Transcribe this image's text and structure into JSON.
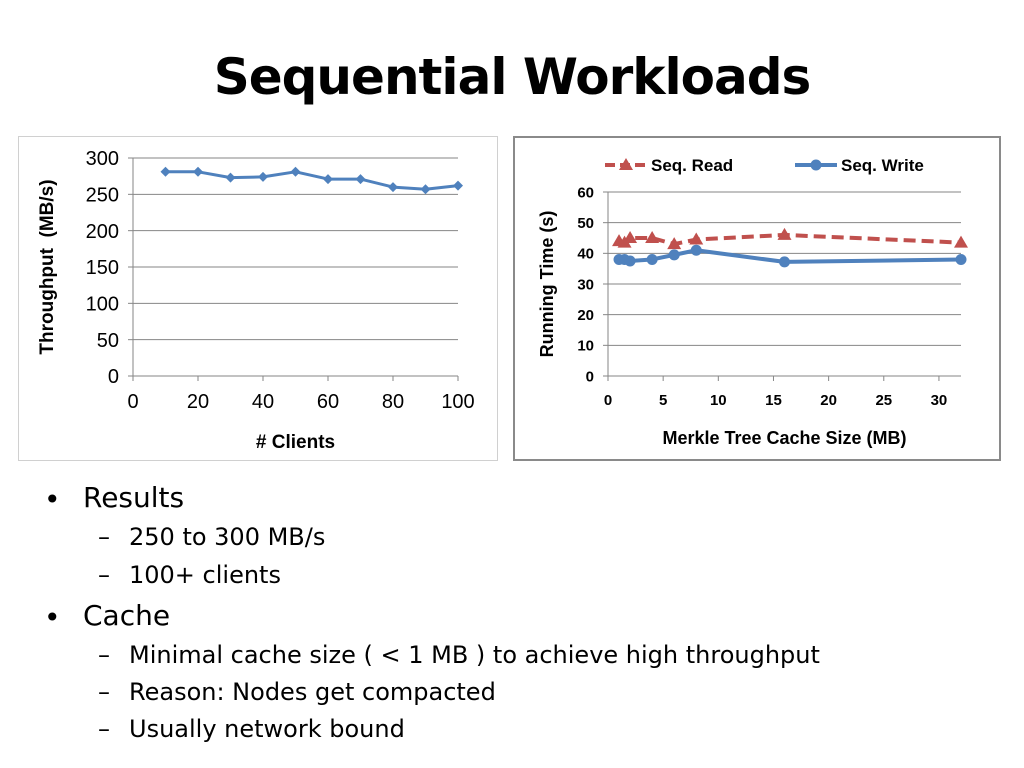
{
  "slide": {
    "title": "Sequential Workloads",
    "bullets": [
      {
        "text": "Results",
        "sub": [
          "250 to 300 MB/s",
          "100+ clients"
        ]
      },
      {
        "text": "Cache",
        "sub": [
          "Minimal cache size ( < 1 MB ) to achieve high throughput",
          "Reason: Nodes get compacted",
          "Usually network bound"
        ]
      }
    ],
    "bullet_symbol": "•",
    "sub_bullet_symbol": "–"
  },
  "chart_data": [
    {
      "type": "line",
      "title": "",
      "xlabel": "# Clients",
      "ylabel": "Throughput  (MB/s)",
      "xlim": [
        0,
        100
      ],
      "ylim": [
        0,
        300
      ],
      "xticks": [
        0,
        20,
        40,
        60,
        80,
        100
      ],
      "yticks": [
        0,
        50,
        100,
        150,
        200,
        250,
        300
      ],
      "grid": "horizontal",
      "legend": "none",
      "series": [
        {
          "color": "#4f81bd",
          "marker": "diamond",
          "x": [
            10,
            20,
            30,
            40,
            50,
            60,
            70,
            80,
            90,
            100
          ],
          "y": [
            281,
            281,
            273,
            274,
            281,
            271,
            271,
            260,
            257,
            262
          ]
        }
      ]
    },
    {
      "type": "line",
      "title": "",
      "xlabel": "Merkle Tree Cache Size (MB)",
      "ylabel": "Running Time (s)",
      "xlim": [
        0,
        32
      ],
      "ylim": [
        0,
        60
      ],
      "xticks": [
        0,
        5,
        10,
        15,
        20,
        25,
        30
      ],
      "yticks": [
        0,
        10,
        20,
        30,
        40,
        50,
        60
      ],
      "grid": "horizontal",
      "legend": "top",
      "series": [
        {
          "name": "Seq. Read",
          "color": "#c0504d",
          "marker": "triangle",
          "dashed": true,
          "x": [
            1,
            1.5,
            2,
            4,
            6,
            8,
            16,
            32
          ],
          "y": [
            44,
            43.5,
            45,
            45,
            43,
            44.5,
            46,
            43.5
          ]
        },
        {
          "name": "Seq. Write",
          "color": "#4f81bd",
          "marker": "circle",
          "dashed": false,
          "x": [
            1,
            1.5,
            2,
            4,
            6,
            8,
            16,
            32
          ],
          "y": [
            38,
            38,
            37.5,
            38,
            39.5,
            41,
            37.2,
            38
          ]
        }
      ]
    }
  ]
}
